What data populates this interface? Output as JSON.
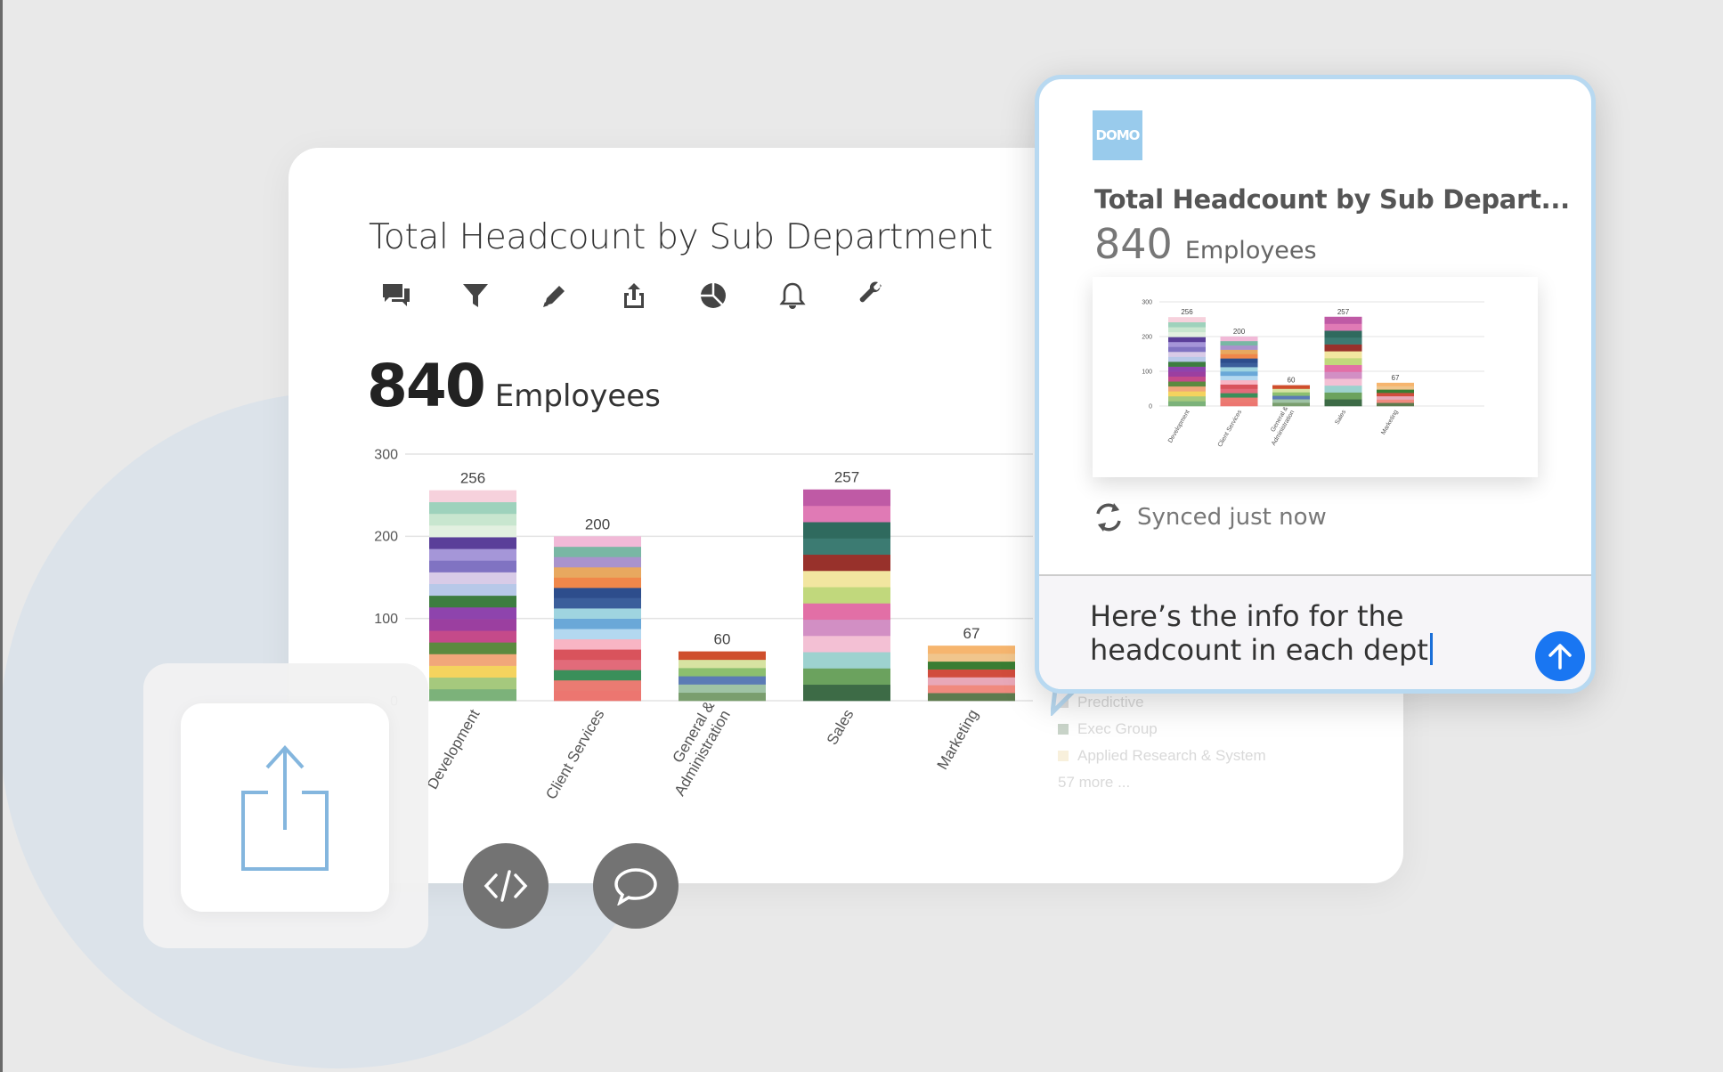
{
  "main": {
    "title": "Total Headcount by Sub Department",
    "headcount_value": "840",
    "headcount_label": "Employees",
    "toolbar_icons": [
      "comment-icon",
      "filter-icon",
      "pencil-icon",
      "share-icon",
      "pie-chart-icon",
      "bell-icon",
      "wrench-icon"
    ]
  },
  "legend": {
    "items": [
      {
        "label": "Predictive",
        "color": "#dedede"
      },
      {
        "label": "Exec Group",
        "color": "#c9d4c9"
      },
      {
        "label": "Applied Research & System",
        "color": "#f8f0dc"
      }
    ],
    "more": "57 more ..."
  },
  "chat": {
    "brand": "DOMO",
    "title": "Total Headcount by Sub Depart...",
    "headcount_value": "840",
    "headcount_label": "Employees",
    "synced": "Synced just now",
    "message": "Here’s the info for the headcount in each dept"
  },
  "chart_data": {
    "type": "bar",
    "stacked": true,
    "categories": [
      "Development",
      "Client Services",
      "General & Administration",
      "Sales",
      "Marketing"
    ],
    "values": [
      256,
      200,
      60,
      257,
      67
    ],
    "ylim": [
      0,
      300
    ],
    "yticks": [
      0,
      100,
      200,
      300
    ],
    "grid": true,
    "palettes": [
      [
        "#7cb27a",
        "#a5c97d",
        "#f4d35e",
        "#f1a77a",
        "#5c8a3f",
        "#c54a8a",
        "#9b3fa0",
        "#8e44ad",
        "#3d7d40",
        "#b7c8e8",
        "#d8cbe7",
        "#8073c2",
        "#a596d8",
        "#5a3f99",
        "#e2f0e0",
        "#c8e6cf",
        "#9ed2bc",
        "#f6d1dc"
      ],
      [
        "#ec7670",
        "#ea7b72",
        "#3a8f5a",
        "#e26b7a",
        "#d9535c",
        "#f8b5c4",
        "#b3d8f0",
        "#6aa8d8",
        "#9fd4e0",
        "#3b5e9b",
        "#2d4d8c",
        "#f0874a",
        "#e8a85f",
        "#a993cc",
        "#79b7a4",
        "#f1b9d7"
      ],
      [
        "#7a9e6e",
        "#9fc3a5",
        "#5b7bb5",
        "#8cbf6f",
        "#d7e3a2",
        "#cf4e2c"
      ],
      [
        "#3d6b46",
        "#6ba25e",
        "#9dd2cf",
        "#f3c0d4",
        "#d28fc4",
        "#e26fa6",
        "#c1d87c",
        "#f2e6a0",
        "#98312b",
        "#3c7b72",
        "#2f6a5e",
        "#e07ab5",
        "#bf5aa5"
      ],
      [
        "#5d7b4e",
        "#f08a7e",
        "#e8a8b8",
        "#d14c3d",
        "#3a7d33",
        "#f0c58c",
        "#f6b56e"
      ]
    ]
  }
}
